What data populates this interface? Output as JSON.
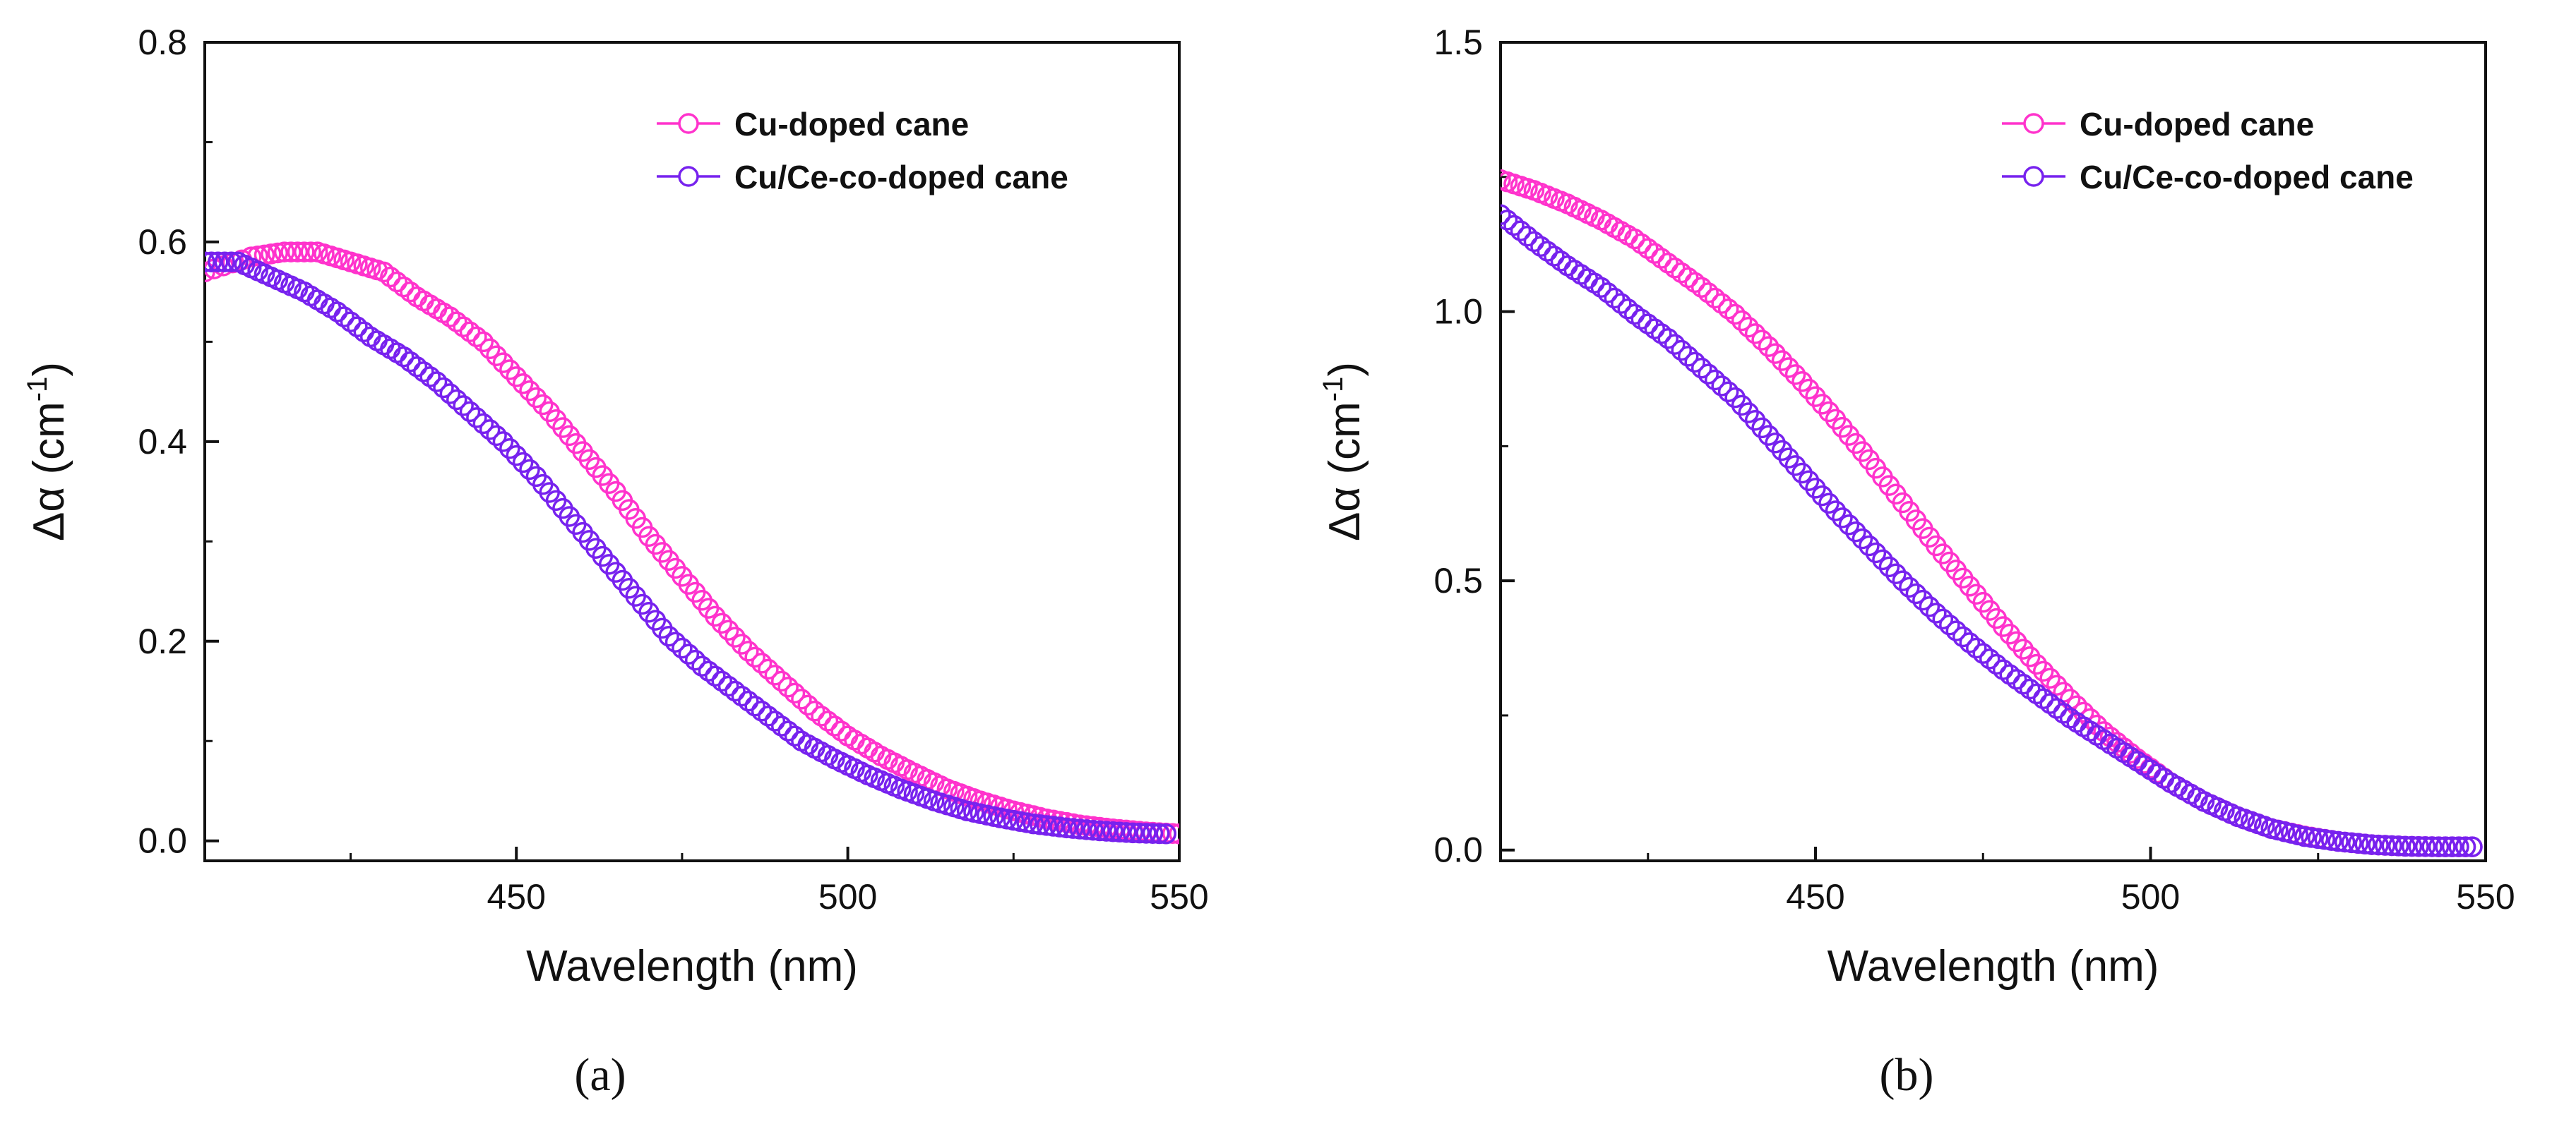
{
  "figure": {
    "panels": [
      {
        "label": "(a)",
        "chart_data": {
          "type": "scatter",
          "title": "",
          "xlabel": "Wavelength (nm)",
          "ylabel_main": "Δα (cm",
          "ylabel_sup": "-1",
          "ylabel_close": ")",
          "xlim": [
            403,
            550
          ],
          "ylim": [
            -0.02,
            0.8
          ],
          "xticks": [
            {
              "value": 450,
              "label": "450"
            },
            {
              "value": 500,
              "label": "500"
            },
            {
              "value": 550,
              "label": "550"
            }
          ],
          "yticks": [
            {
              "value": 0.0,
              "label": "0.0"
            },
            {
              "value": 0.2,
              "label": "0.2"
            },
            {
              "value": 0.4,
              "label": "0.4"
            },
            {
              "value": 0.6,
              "label": "0.6"
            },
            {
              "value": 0.8,
              "label": "0.8"
            }
          ],
          "grid": false,
          "legend_position": "top-right",
          "series": [
            {
              "name": "Cu-doped cane",
              "color": "#ff33cc",
              "marker": "open-circle",
              "points": [
                [
                  403,
                  0.57
                ],
                [
                  410,
                  0.585
                ],
                [
                  415,
                  0.59
                ],
                [
                  420,
                  0.59
                ],
                [
                  425,
                  0.58
                ],
                [
                  430,
                  0.57
                ],
                [
                  435,
                  0.545
                ],
                [
                  440,
                  0.525
                ],
                [
                  445,
                  0.5
                ],
                [
                  450,
                  0.465
                ],
                [
                  455,
                  0.43
                ],
                [
                  460,
                  0.39
                ],
                [
                  465,
                  0.35
                ],
                [
                  470,
                  0.305
                ],
                [
                  475,
                  0.265
                ],
                [
                  480,
                  0.225
                ],
                [
                  485,
                  0.19
                ],
                [
                  490,
                  0.16
                ],
                [
                  495,
                  0.13
                ],
                [
                  500,
                  0.105
                ],
                [
                  505,
                  0.085
                ],
                [
                  510,
                  0.068
                ],
                [
                  515,
                  0.052
                ],
                [
                  520,
                  0.04
                ],
                [
                  525,
                  0.03
                ],
                [
                  530,
                  0.022
                ],
                [
                  535,
                  0.016
                ],
                [
                  540,
                  0.012
                ],
                [
                  545,
                  0.009
                ],
                [
                  550,
                  0.007
                ]
              ]
            },
            {
              "name": "Cu/Ce-co-doped cane",
              "color": "#7722ee",
              "marker": "open-circle",
              "points": [
                [
                  403,
                  0.58
                ],
                [
                  408,
                  0.58
                ],
                [
                  413,
                  0.565
                ],
                [
                  418,
                  0.55
                ],
                [
                  423,
                  0.53
                ],
                [
                  428,
                  0.505
                ],
                [
                  433,
                  0.485
                ],
                [
                  438,
                  0.46
                ],
                [
                  443,
                  0.43
                ],
                [
                  448,
                  0.4
                ],
                [
                  453,
                  0.365
                ],
                [
                  458,
                  0.325
                ],
                [
                  463,
                  0.285
                ],
                [
                  468,
                  0.245
                ],
                [
                  473,
                  0.205
                ],
                [
                  478,
                  0.175
                ],
                [
                  483,
                  0.15
                ],
                [
                  488,
                  0.125
                ],
                [
                  493,
                  0.1
                ],
                [
                  498,
                  0.082
                ],
                [
                  503,
                  0.066
                ],
                [
                  508,
                  0.052
                ],
                [
                  513,
                  0.04
                ],
                [
                  518,
                  0.03
                ],
                [
                  523,
                  0.023
                ],
                [
                  528,
                  0.017
                ],
                [
                  533,
                  0.013
                ],
                [
                  538,
                  0.01
                ],
                [
                  543,
                  0.008
                ],
                [
                  548,
                  0.007
                ]
              ]
            }
          ]
        }
      },
      {
        "label": "(b)",
        "chart_data": {
          "type": "scatter",
          "title": "",
          "xlabel": "Wavelength (nm)",
          "ylabel_main": "Δα (cm",
          "ylabel_sup": "-1",
          "ylabel_close": ")",
          "xlim": [
            403,
            550
          ],
          "ylim": [
            -0.02,
            1.5
          ],
          "xticks": [
            {
              "value": 450,
              "label": "450"
            },
            {
              "value": 500,
              "label": "500"
            },
            {
              "value": 550,
              "label": "550"
            }
          ],
          "yticks": [
            {
              "value": 0.0,
              "label": "0.0"
            },
            {
              "value": 0.5,
              "label": "0.5"
            },
            {
              "value": 1.0,
              "label": "1.0"
            },
            {
              "value": 1.5,
              "label": "1.5"
            }
          ],
          "grid": false,
          "legend_position": "top-right",
          "series": [
            {
              "name": "Cu-doped cane",
              "color": "#ff33cc",
              "marker": "open-circle",
              "points": [
                [
                  403,
                  1.245
                ],
                [
                  408,
                  1.225
                ],
                [
                  413,
                  1.2
                ],
                [
                  418,
                  1.17
                ],
                [
                  423,
                  1.135
                ],
                [
                  428,
                  1.09
                ],
                [
                  433,
                  1.045
                ],
                [
                  438,
                  0.995
                ],
                [
                  443,
                  0.935
                ],
                [
                  448,
                  0.87
                ],
                [
                  453,
                  0.8
                ],
                [
                  458,
                  0.725
                ],
                [
                  463,
                  0.645
                ],
                [
                  468,
                  0.565
                ],
                [
                  473,
                  0.49
                ],
                [
                  478,
                  0.415
                ],
                [
                  483,
                  0.345
                ],
                [
                  488,
                  0.28
                ],
                [
                  493,
                  0.22
                ],
                [
                  498,
                  0.17
                ],
                [
                  503,
                  0.125
                ],
                [
                  508,
                  0.09
                ],
                [
                  513,
                  0.062
                ],
                [
                  518,
                  0.04
                ],
                [
                  523,
                  0.026
                ],
                [
                  528,
                  0.016
                ],
                [
                  533,
                  0.01
                ],
                [
                  538,
                  0.007
                ],
                [
                  543,
                  0.006
                ],
                [
                  548,
                  0.006
                ]
              ]
            },
            {
              "name": "Cu/Ce-co-doped cane",
              "color": "#7722ee",
              "marker": "open-circle",
              "points": [
                [
                  403,
                  1.18
                ],
                [
                  408,
                  1.13
                ],
                [
                  413,
                  1.085
                ],
                [
                  418,
                  1.045
                ],
                [
                  423,
                  0.995
                ],
                [
                  428,
                  0.95
                ],
                [
                  433,
                  0.895
                ],
                [
                  438,
                  0.84
                ],
                [
                  443,
                  0.77
                ],
                [
                  448,
                  0.7
                ],
                [
                  453,
                  0.63
                ],
                [
                  458,
                  0.565
                ],
                [
                  463,
                  0.5
                ],
                [
                  468,
                  0.44
                ],
                [
                  473,
                  0.385
                ],
                [
                  478,
                  0.335
                ],
                [
                  483,
                  0.29
                ],
                [
                  488,
                  0.245
                ],
                [
                  493,
                  0.205
                ],
                [
                  498,
                  0.165
                ],
                [
                  503,
                  0.125
                ],
                [
                  508,
                  0.09
                ],
                [
                  513,
                  0.062
                ],
                [
                  518,
                  0.04
                ],
                [
                  523,
                  0.025
                ],
                [
                  528,
                  0.016
                ],
                [
                  533,
                  0.01
                ],
                [
                  538,
                  0.007
                ],
                [
                  543,
                  0.006
                ],
                [
                  548,
                  0.006
                ]
              ]
            }
          ]
        }
      }
    ]
  }
}
